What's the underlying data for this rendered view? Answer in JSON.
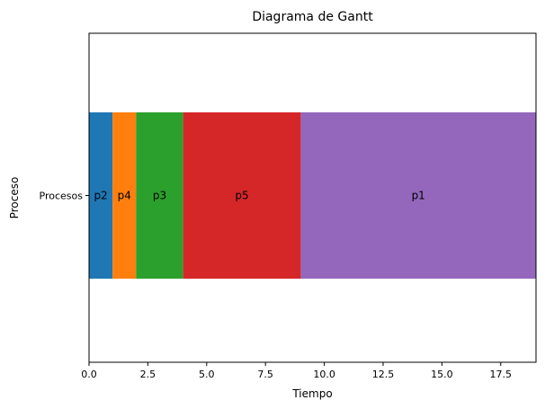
{
  "chart_data": {
    "type": "bar",
    "orientation": "horizontal-stacked",
    "title": "Diagrama de Gantt",
    "xlabel": "Tiempo",
    "ylabel": "Proceso",
    "xlim": [
      0,
      19
    ],
    "xticks": [
      "0.0",
      "2.5",
      "5.0",
      "7.5",
      "10.0",
      "12.5",
      "15.0",
      "17.5"
    ],
    "xtick_values": [
      0,
      2.5,
      5,
      7.5,
      10,
      12.5,
      15,
      17.5
    ],
    "categories": [
      "Procesos"
    ],
    "segments": [
      {
        "label": "p2",
        "start": 0,
        "end": 1,
        "color": "#1f77b4"
      },
      {
        "label": "p4",
        "start": 1,
        "end": 2,
        "color": "#ff7f0e"
      },
      {
        "label": "p3",
        "start": 2,
        "end": 4,
        "color": "#2ca02c"
      },
      {
        "label": "p5",
        "start": 4,
        "end": 9,
        "color": "#d62728"
      },
      {
        "label": "p1",
        "start": 9,
        "end": 19,
        "color": "#9467bd"
      }
    ],
    "grid": false
  }
}
